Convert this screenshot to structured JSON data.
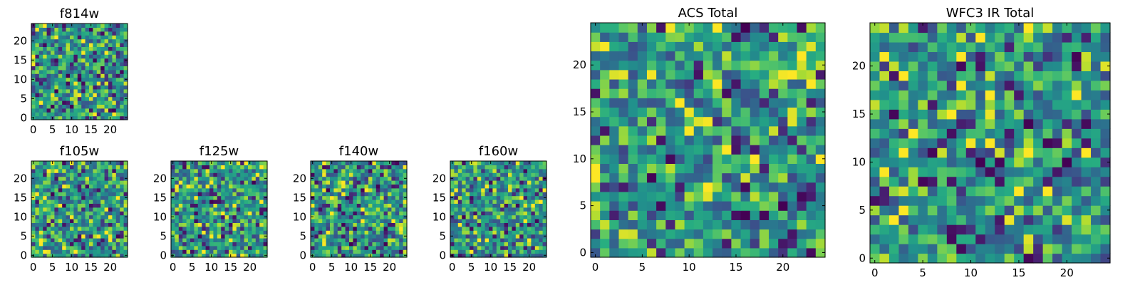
{
  "chart_data": [
    {
      "type": "heatmap",
      "title": "f814w",
      "grid_size": 25,
      "colormap": "viridis",
      "xticks": [
        "0",
        "5",
        "10",
        "15",
        "20"
      ],
      "yticks": [
        "0",
        "5",
        "10",
        "15",
        "20"
      ],
      "values": "25x25 noise image, values approx. 0.1-1.0 (generated)"
    },
    {
      "type": "heatmap",
      "title": "f105w",
      "grid_size": 25,
      "colormap": "viridis",
      "xticks": [
        "0",
        "5",
        "10",
        "15",
        "20"
      ],
      "yticks": [
        "0",
        "5",
        "10",
        "15",
        "20"
      ],
      "values": "25x25 noise image, values approx. 0.1-1.0 (generated)"
    },
    {
      "type": "heatmap",
      "title": "f125w",
      "grid_size": 25,
      "colormap": "viridis",
      "xticks": [
        "0",
        "5",
        "10",
        "15",
        "20"
      ],
      "yticks": [
        "0",
        "5",
        "10",
        "15",
        "20"
      ],
      "values": "25x25 noise image, values approx. 0.1-1.0 (generated)"
    },
    {
      "type": "heatmap",
      "title": "f140w",
      "grid_size": 25,
      "colormap": "viridis",
      "xticks": [
        "0",
        "5",
        "10",
        "15",
        "20"
      ],
      "yticks": [
        "0",
        "5",
        "10",
        "15",
        "20"
      ],
      "values": "25x25 noise image, values approx. 0.1-1.0 (generated)"
    },
    {
      "type": "heatmap",
      "title": "f160w",
      "grid_size": 25,
      "colormap": "viridis",
      "xticks": [
        "0",
        "5",
        "10",
        "15",
        "20"
      ],
      "yticks": [
        "0",
        "5",
        "10",
        "15",
        "20"
      ],
      "values": "25x25 noise image, values approx. 0.1-1.0 (generated)"
    },
    {
      "type": "heatmap",
      "title": "ACS Total",
      "grid_size": 25,
      "colormap": "viridis",
      "xticks": [
        "0",
        "5",
        "10",
        "15",
        "20"
      ],
      "yticks": [
        "0",
        "5",
        "10",
        "15",
        "20"
      ],
      "values": "25x25 noise image, values approx. 0.1-1.0 (generated)"
    },
    {
      "type": "heatmap",
      "title": "WFC3 IR Total",
      "grid_size": 25,
      "colormap": "viridis",
      "xticks": [
        "0",
        "5",
        "10",
        "15",
        "20"
      ],
      "yticks": [
        "0",
        "5",
        "10",
        "15",
        "20"
      ],
      "values": "25x25 noise image, values approx. 0.1-1.0 (generated)"
    }
  ]
}
